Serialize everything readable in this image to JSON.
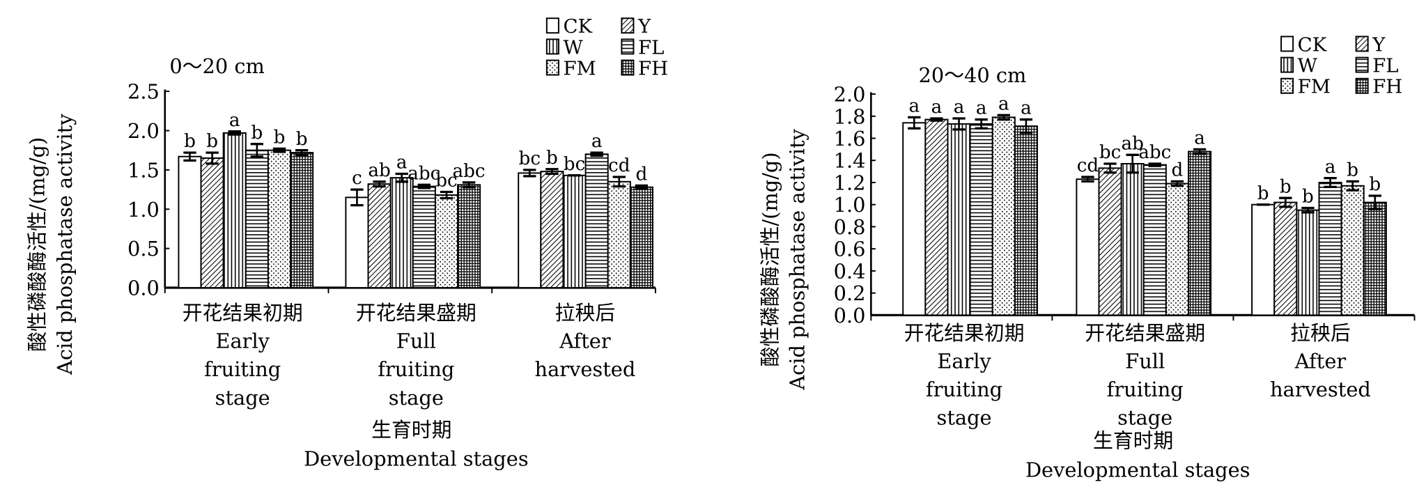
{
  "chart_data": [
    {
      "type": "bar",
      "title": "0～20 cm",
      "ylabel_cn": "酸性磷酸酶活性/(mg/g)",
      "ylabel_en": "Acid phosphatase activity",
      "xlabel_cn": "生育时期",
      "xlabel_en": "Developmental stages",
      "ylim": [
        0,
        2.5
      ],
      "yticks": [
        "0.0",
        "0.5",
        "1.0",
        "1.5",
        "2.0",
        "2.5"
      ],
      "ytick_step": 0.5,
      "categories": [
        [
          "开花结果初期",
          "Early",
          "fruiting",
          "stage"
        ],
        [
          "开花结果盛期",
          "Full",
          "fruiting",
          "stage"
        ],
        [
          "拉秧后",
          "After",
          "harvested"
        ]
      ],
      "legend": [
        "CK",
        "Y",
        "W",
        "FL",
        "FM",
        "FH"
      ],
      "legend_placement": "top-right",
      "series": [
        {
          "name": "CK",
          "values": [
            1.67,
            1.15,
            1.46
          ],
          "errors": [
            0.05,
            0.1,
            0.04
          ],
          "letters": [
            "b",
            "c",
            "bc"
          ]
        },
        {
          "name": "Y",
          "values": [
            1.65,
            1.32,
            1.48
          ],
          "errors": [
            0.07,
            0.03,
            0.03
          ],
          "letters": [
            "b",
            "ab",
            "b"
          ]
        },
        {
          "name": "W",
          "values": [
            1.97,
            1.4,
            1.43
          ],
          "errors": [
            0.02,
            0.05,
            0
          ],
          "letters": [
            "a",
            "a",
            "bc"
          ]
        },
        {
          "name": "FL",
          "values": [
            1.75,
            1.29,
            1.7
          ],
          "errors": [
            0.08,
            0.02,
            0.02
          ],
          "letters": [
            "b",
            "abc",
            "a"
          ]
        },
        {
          "name": "FM",
          "values": [
            1.75,
            1.18,
            1.35
          ],
          "errors": [
            0.02,
            0.04,
            0.06
          ],
          "letters": [
            "b",
            "bc",
            "cd"
          ]
        },
        {
          "name": "FH",
          "values": [
            1.72,
            1.31,
            1.28
          ],
          "errors": [
            0.03,
            0.03,
            0.02
          ],
          "letters": [
            "b",
            "abc",
            "d"
          ]
        }
      ]
    },
    {
      "type": "bar",
      "title": "20～40 cm",
      "ylabel_cn": "酸性磷酸酶活性/(mg/g)",
      "ylabel_en": "Acid phosphatase activity",
      "xlabel_cn": "生育时期",
      "xlabel_en": "Developmental stages",
      "ylim": [
        0,
        2.0
      ],
      "yticks": [
        "0.0",
        "0.2",
        "0.4",
        "0.6",
        "0.8",
        "1.0",
        "1.2",
        "1.4",
        "1.6",
        "1.8",
        "2.0"
      ],
      "ytick_step": 0.2,
      "categories": [
        [
          "开花结果初期",
          "Early",
          "fruiting",
          "stage"
        ],
        [
          "开花结果盛期",
          "Full",
          "fruiting",
          "stage"
        ],
        [
          "拉秧后",
          "After",
          "harvested"
        ]
      ],
      "legend": [
        "CK",
        "Y",
        "W",
        "FL",
        "FM",
        "FH"
      ],
      "legend_placement": "top-right",
      "series": [
        {
          "name": "CK",
          "values": [
            1.74,
            1.23,
            1.0
          ],
          "errors": [
            0.05,
            0.02,
            0
          ],
          "letters": [
            "a",
            "cd",
            "b"
          ]
        },
        {
          "name": "Y",
          "values": [
            1.77,
            1.33,
            1.02
          ],
          "errors": [
            0.01,
            0.04,
            0.04
          ],
          "letters": [
            "a",
            "bc",
            "b"
          ]
        },
        {
          "name": "W",
          "values": [
            1.73,
            1.37,
            0.95
          ],
          "errors": [
            0.05,
            0.08,
            0.02
          ],
          "letters": [
            "a",
            "ab",
            "b"
          ]
        },
        {
          "name": "FL",
          "values": [
            1.73,
            1.36,
            1.2
          ],
          "errors": [
            0.04,
            0.01,
            0.04
          ],
          "letters": [
            "a",
            "abc",
            "a"
          ]
        },
        {
          "name": "FM",
          "values": [
            1.79,
            1.19,
            1.17
          ],
          "errors": [
            0.02,
            0.02,
            0.04
          ],
          "letters": [
            "a",
            "d",
            "b"
          ]
        },
        {
          "name": "FH",
          "values": [
            1.71,
            1.48,
            1.02
          ],
          "errors": [
            0.06,
            0.02,
            0.06
          ],
          "letters": [
            "a",
            "a",
            "b"
          ]
        }
      ]
    }
  ]
}
